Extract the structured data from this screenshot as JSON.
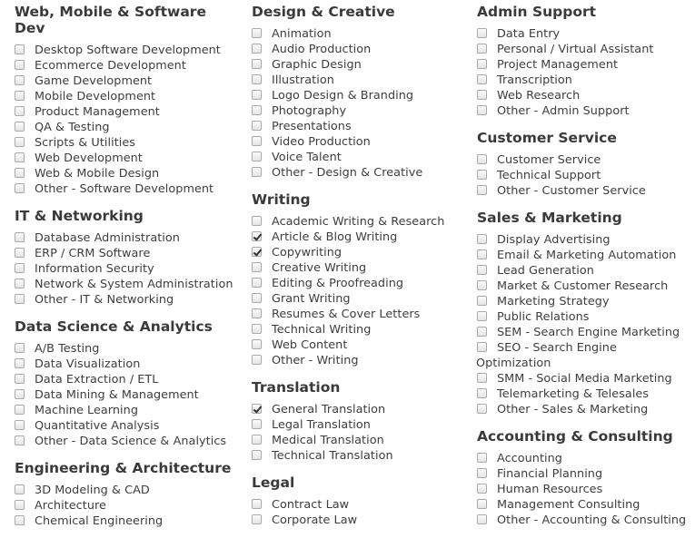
{
  "columns": [
    [
      {
        "title": "Web, Mobile & Software Dev",
        "items": [
          {
            "label": "Desktop Software Development",
            "checked": false
          },
          {
            "label": "Ecommerce Development",
            "checked": false
          },
          {
            "label": "Game Development",
            "checked": false
          },
          {
            "label": "Mobile Development",
            "checked": false
          },
          {
            "label": "Product Management",
            "checked": false
          },
          {
            "label": "QA & Testing",
            "checked": false
          },
          {
            "label": "Scripts & Utilities",
            "checked": false
          },
          {
            "label": "Web Development",
            "checked": false
          },
          {
            "label": "Web & Mobile Design",
            "checked": false
          },
          {
            "label": "Other - Software Development",
            "checked": false
          }
        ]
      },
      {
        "title": "IT & Networking",
        "items": [
          {
            "label": "Database Administration",
            "checked": false
          },
          {
            "label": "ERP / CRM Software",
            "checked": false
          },
          {
            "label": "Information Security",
            "checked": false
          },
          {
            "label": "Network & System Administration",
            "checked": false
          },
          {
            "label": "Other - IT & Networking",
            "checked": false
          }
        ]
      },
      {
        "title": "Data Science & Analytics",
        "items": [
          {
            "label": "A/B Testing",
            "checked": false
          },
          {
            "label": "Data Visualization",
            "checked": false
          },
          {
            "label": "Data Extraction / ETL",
            "checked": false
          },
          {
            "label": "Data Mining & Management",
            "checked": false
          },
          {
            "label": "Machine Learning",
            "checked": false
          },
          {
            "label": "Quantitative Analysis",
            "checked": false
          },
          {
            "label": "Other - Data Science & Analytics",
            "checked": false
          }
        ]
      },
      {
        "title": "Engineering & Architecture",
        "items": [
          {
            "label": "3D Modeling & CAD",
            "checked": false
          },
          {
            "label": "Architecture",
            "checked": false
          },
          {
            "label": "Chemical Engineering",
            "checked": false
          }
        ]
      }
    ],
    [
      {
        "title": "Design & Creative",
        "items": [
          {
            "label": "Animation",
            "checked": false
          },
          {
            "label": "Audio Production",
            "checked": false
          },
          {
            "label": "Graphic Design",
            "checked": false
          },
          {
            "label": "Illustration",
            "checked": false
          },
          {
            "label": "Logo Design & Branding",
            "checked": false
          },
          {
            "label": "Photography",
            "checked": false
          },
          {
            "label": "Presentations",
            "checked": false
          },
          {
            "label": "Video Production",
            "checked": false
          },
          {
            "label": "Voice Talent",
            "checked": false
          },
          {
            "label": "Other - Design & Creative",
            "checked": false
          }
        ]
      },
      {
        "title": "Writing",
        "items": [
          {
            "label": "Academic Writing & Research",
            "checked": false
          },
          {
            "label": "Article & Blog Writing",
            "checked": true
          },
          {
            "label": "Copywriting",
            "checked": true
          },
          {
            "label": "Creative Writing",
            "checked": false
          },
          {
            "label": "Editing & Proofreading",
            "checked": false
          },
          {
            "label": "Grant Writing",
            "checked": false
          },
          {
            "label": "Resumes & Cover Letters",
            "checked": false
          },
          {
            "label": "Technical Writing",
            "checked": false
          },
          {
            "label": "Web Content",
            "checked": false
          },
          {
            "label": "Other - Writing",
            "checked": false
          }
        ]
      },
      {
        "title": "Translation",
        "items": [
          {
            "label": "General Translation",
            "checked": true
          },
          {
            "label": "Legal Translation",
            "checked": false
          },
          {
            "label": "Medical Translation",
            "checked": false
          },
          {
            "label": "Technical Translation",
            "checked": false
          }
        ]
      },
      {
        "title": "Legal",
        "items": [
          {
            "label": "Contract Law",
            "checked": false
          },
          {
            "label": "Corporate Law",
            "checked": false
          }
        ]
      }
    ],
    [
      {
        "title": "Admin Support",
        "items": [
          {
            "label": "Data Entry",
            "checked": false
          },
          {
            "label": "Personal / Virtual Assistant",
            "checked": false
          },
          {
            "label": "Project Management",
            "checked": false
          },
          {
            "label": "Transcription",
            "checked": false
          },
          {
            "label": "Web Research",
            "checked": false
          },
          {
            "label": "Other - Admin Support",
            "checked": false
          }
        ]
      },
      {
        "title": "Customer Service",
        "items": [
          {
            "label": "Customer Service",
            "checked": false
          },
          {
            "label": "Technical Support",
            "checked": false
          },
          {
            "label": "Other - Customer Service",
            "checked": false
          }
        ]
      },
      {
        "title": "Sales & Marketing",
        "items": [
          {
            "label": "Display Advertising",
            "checked": false
          },
          {
            "label": "Email & Marketing Automation",
            "checked": false
          },
          {
            "label": "Lead Generation",
            "checked": false
          },
          {
            "label": "Market & Customer Research",
            "checked": false
          },
          {
            "label": "Marketing Strategy",
            "checked": false
          },
          {
            "label": "Public Relations",
            "checked": false
          },
          {
            "label": "SEM - Search Engine Marketing",
            "checked": false
          },
          {
            "label": "SEO - Search Engine Optimization",
            "checked": false
          },
          {
            "label": "SMM - Social Media Marketing",
            "checked": false
          },
          {
            "label": "Telemarketing & Telesales",
            "checked": false
          },
          {
            "label": "Other - Sales & Marketing",
            "checked": false
          }
        ]
      },
      {
        "title": "Accounting & Consulting",
        "items": [
          {
            "label": "Accounting",
            "checked": false
          },
          {
            "label": "Financial Planning",
            "checked": false
          },
          {
            "label": "Human Resources",
            "checked": false
          },
          {
            "label": "Management Consulting",
            "checked": false
          },
          {
            "label": "Other - Accounting & Consulting",
            "checked": false
          }
        ]
      }
    ]
  ]
}
